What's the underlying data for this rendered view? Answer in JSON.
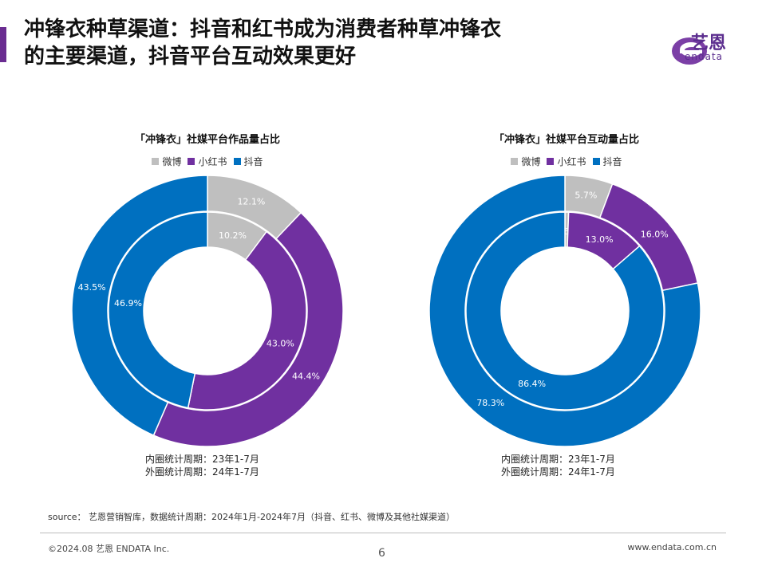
{
  "header": {
    "title_line1": "冲锋衣种草渠道：抖音和红书成为消费者种草冲锋衣",
    "title_line2": "的主要渠道，抖音平台互动效果更好",
    "logo_cn": "艺恩",
    "logo_en": "endata"
  },
  "colors": {
    "weibo": "#bfbfbf",
    "xiaohongshu": "#7030a0",
    "douyin": "#0070c0",
    "accent": "#6a2c91"
  },
  "chart_data": [
    {
      "type": "pie",
      "subtype": "double-donut",
      "title": "「冲锋衣」社媒平台作品量占比",
      "legend": [
        "微博",
        "小红书",
        "抖音"
      ],
      "inner": {
        "label_text": "内圈统计周期：23年1-7月",
        "values": [
          10.2,
          43.0,
          46.9
        ],
        "labels": [
          "10.2%",
          "43.0%",
          "46.9%"
        ]
      },
      "outer": {
        "label_text": "外圈统计周期：24年1-7月",
        "values": [
          12.1,
          44.4,
          43.5
        ],
        "labels": [
          "12.1%",
          "44.4%",
          "43.5%"
        ]
      }
    },
    {
      "type": "pie",
      "subtype": "double-donut",
      "title": "「冲锋衣」社媒平台互动量占比",
      "legend": [
        "微博",
        "小红书",
        "抖音"
      ],
      "inner": {
        "label_text": "内圈统计周期：23年1-7月",
        "values": [
          0.6,
          13.0,
          86.4
        ],
        "labels": [
          "0.6%",
          "13.0%",
          "86.4%"
        ]
      },
      "outer": {
        "label_text": "外圈统计周期：24年1-7月",
        "values": [
          5.7,
          16.0,
          78.3
        ],
        "labels": [
          "5.7%",
          "16.0%",
          "78.3%"
        ]
      }
    }
  ],
  "footer": {
    "source": "source： 艺恩营销智库，数据统计周期：2024年1月-2024年7月（抖音、红书、微博及其他社媒渠道）",
    "copyright": "©2024.08 艺恩 ENDATA Inc.",
    "page": "6",
    "url": "www.endata.com.cn"
  }
}
